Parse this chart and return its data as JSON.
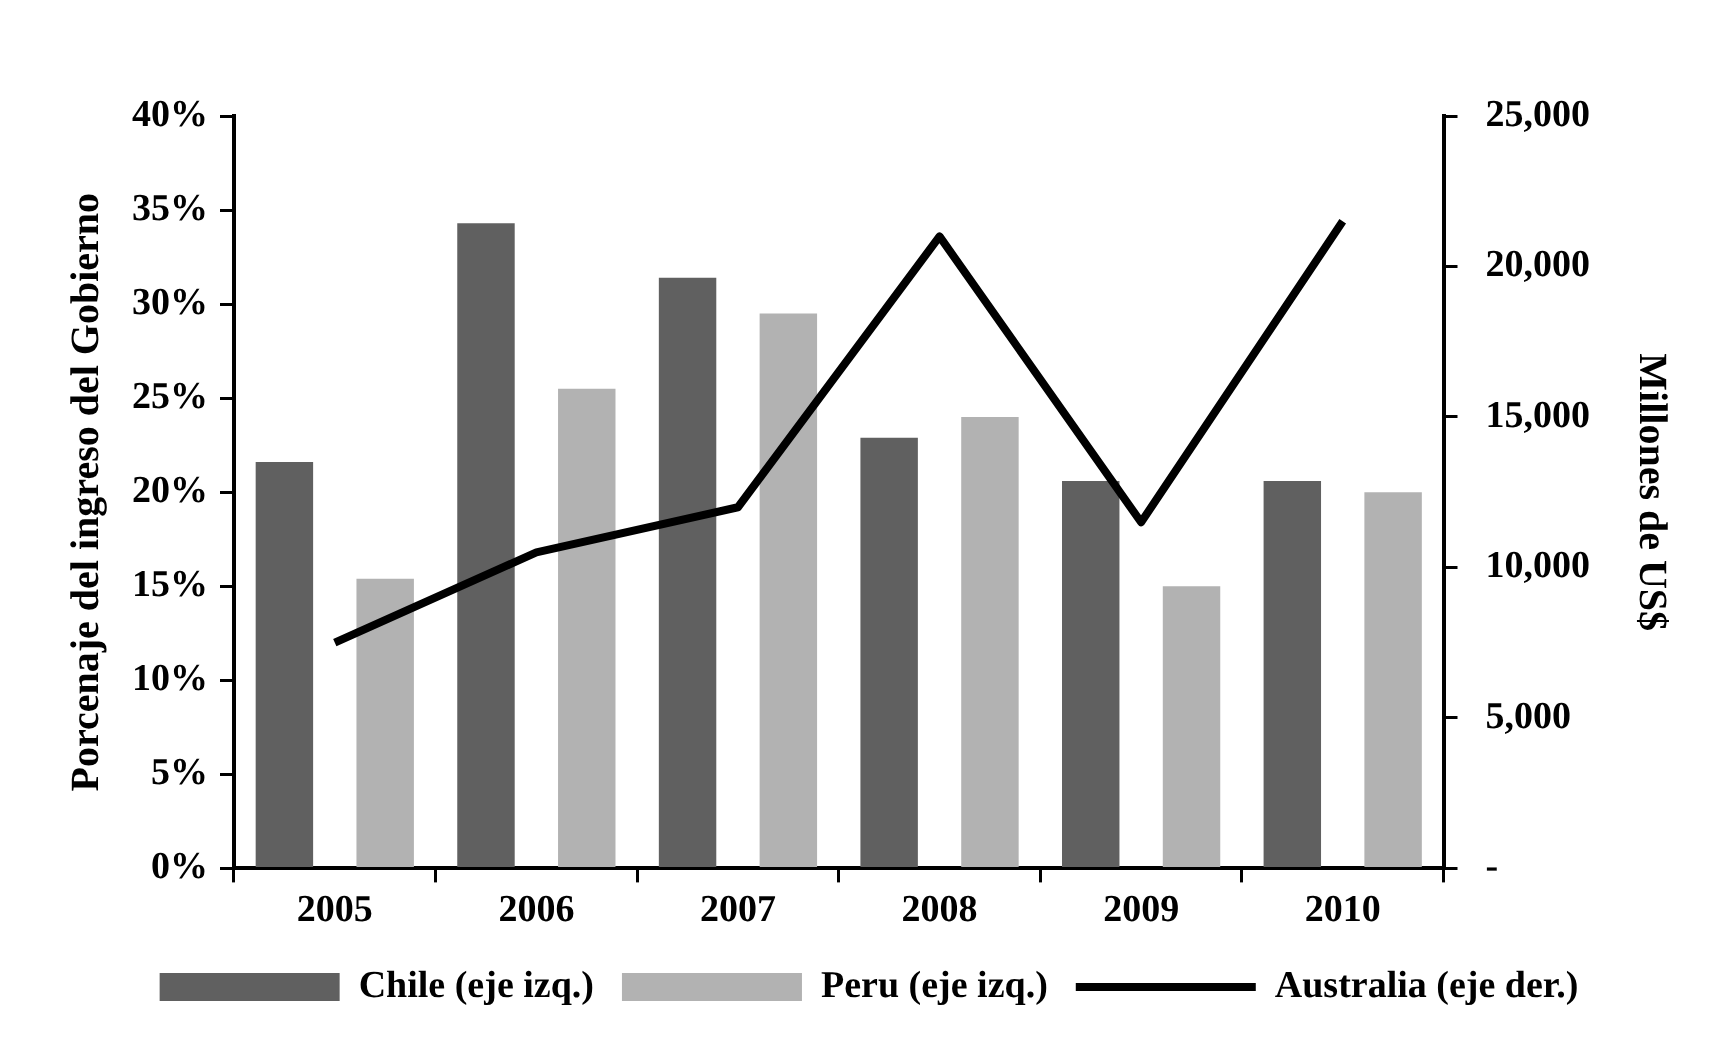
{
  "chart_data": {
    "type": "bar",
    "categories": [
      "2005",
      "2006",
      "2007",
      "2008",
      "2009",
      "2010"
    ],
    "ylabel": "Porcenaje del ingreso del Gobierno",
    "y2label": "Millones de US$",
    "series": [
      {
        "name": "Chile (eje izq.)",
        "color": "#606060",
        "values": [
          21.6,
          34.3,
          31.4,
          22.9,
          20.6,
          20.6
        ]
      },
      {
        "name": "Peru (eje izq.)",
        "color": "#b2b2b2",
        "values": [
          15.4,
          25.5,
          29.5,
          24.0,
          15.0,
          20.0
        ]
      },
      {
        "name": "Australia (eje der.)",
        "type": "line",
        "axis": "y2",
        "color": "#000000",
        "values": [
          7500,
          10500,
          12000,
          21000,
          11500,
          21500
        ]
      }
    ],
    "ylim": [
      0,
      40
    ],
    "yticks": [
      {
        "value": 0,
        "label": "0%"
      },
      {
        "value": 5,
        "label": "5%"
      },
      {
        "value": 10,
        "label": "10%"
      },
      {
        "value": 15,
        "label": "15%"
      },
      {
        "value": 20,
        "label": "20%"
      },
      {
        "value": 25,
        "label": "25%"
      },
      {
        "value": 30,
        "label": "30%"
      },
      {
        "value": 35,
        "label": "35%"
      },
      {
        "value": 40,
        "label": "40%"
      }
    ],
    "y2lim": [
      0,
      25000
    ],
    "y2ticks": [
      {
        "value": 0,
        "label": "-"
      },
      {
        "value": 5000,
        "label": "5,000"
      },
      {
        "value": 10000,
        "label": "10,000"
      },
      {
        "value": 15000,
        "label": "15,000"
      },
      {
        "value": 20000,
        "label": "20,000"
      },
      {
        "value": 25000,
        "label": "25,000"
      }
    ],
    "grid": false,
    "legend": "bottom",
    "marker": "none",
    "line_style": "solid"
  }
}
